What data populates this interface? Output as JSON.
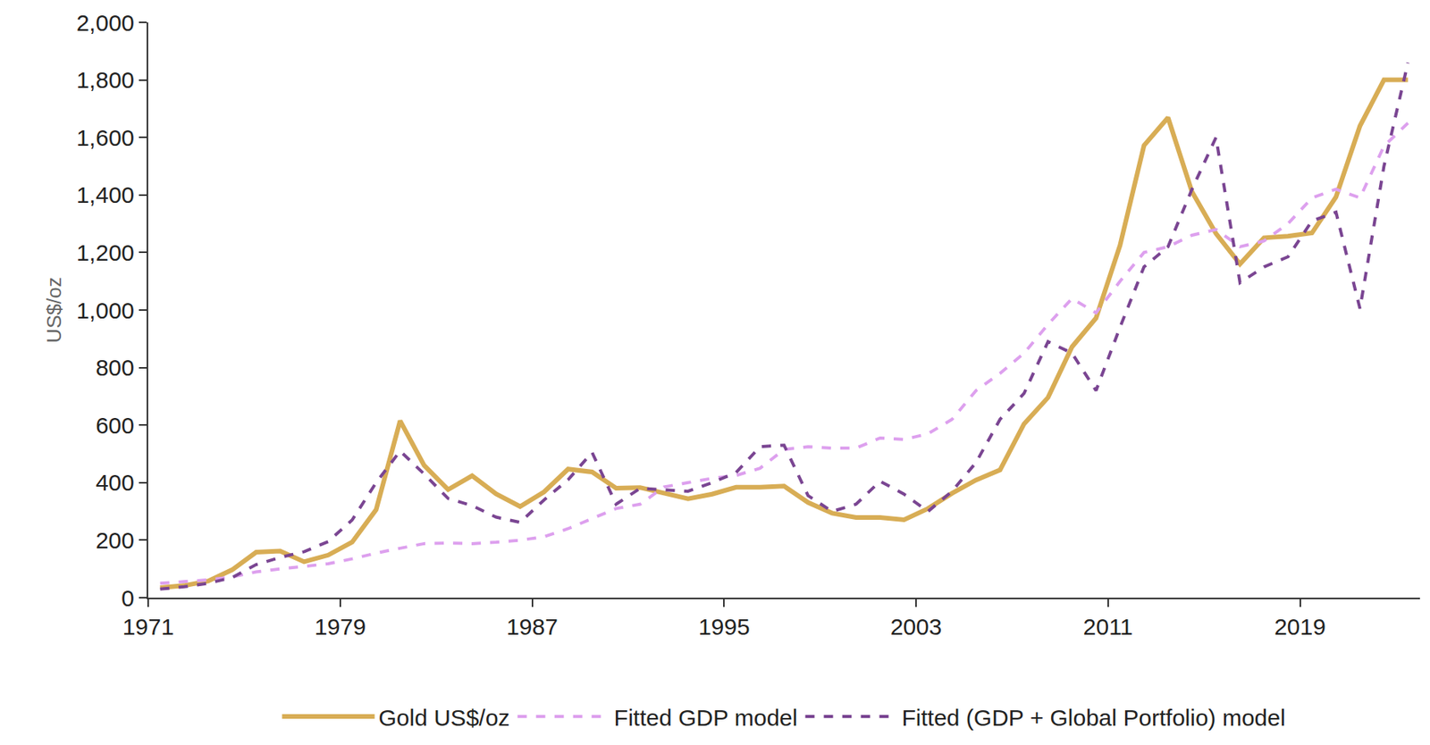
{
  "chart_data": {
    "type": "line",
    "y_label": "US$/oz",
    "x": [
      1971.5,
      1972.5,
      1973.5,
      1974.5,
      1975.5,
      1976.5,
      1977.5,
      1978.5,
      1979.5,
      1980.5,
      1981.5,
      1982.5,
      1983.5,
      1984.5,
      1985.5,
      1986.5,
      1987.5,
      1988.5,
      1989.5,
      1990.5,
      1991.5,
      1992.5,
      1993.5,
      1994.5,
      1995.5,
      1996.5,
      1997.5,
      1998.5,
      1999.5,
      2000.5,
      2001.5,
      2002.5,
      2003.5,
      2004.5,
      2005.5,
      2006.5,
      2007.5,
      2008.5,
      2009.5,
      2010.5,
      2011.5,
      2012.5,
      2013.5,
      2014.5,
      2015.5,
      2016.5,
      2017.5,
      2018.5,
      2019.5,
      2020.5,
      2021.5,
      2022.5,
      2023.5
    ],
    "series": [
      {
        "name": "Gold US$/oz",
        "color": "#D8AD55",
        "line_style": "solid",
        "values": [
          35,
          42,
          58,
          97,
          158,
          162,
          125,
          148,
          193,
          306,
          615,
          460,
          376,
          424,
          361,
          317,
          368,
          447,
          437,
          381,
          383,
          362,
          344,
          360,
          384,
          384,
          388,
          331,
          294,
          279,
          279,
          271,
          310,
          363,
          409,
          444,
          604,
          696,
          872,
          972,
          1225,
          1572,
          1669,
          1411,
          1266,
          1160,
          1251,
          1257,
          1268,
          1393,
          1640,
          1800,
          1800
        ]
      },
      {
        "name": "Fitted GDP model",
        "color": "#DDA0EE",
        "line_style": "dash",
        "values": [
          50,
          55,
          62,
          72,
          90,
          100,
          108,
          118,
          135,
          155,
          172,
          188,
          190,
          188,
          193,
          200,
          212,
          240,
          275,
          310,
          325,
          385,
          400,
          415,
          425,
          450,
          515,
          525,
          520,
          520,
          555,
          550,
          570,
          620,
          720,
          780,
          850,
          950,
          1040,
          990,
          1100,
          1200,
          1220,
          1260,
          1280,
          1220,
          1240,
          1300,
          1390,
          1420,
          1390,
          1570,
          1650
        ]
      },
      {
        "name": "Fitted (GDP + Global Portfolio) model",
        "color": "#7A4592",
        "line_style": "dash",
        "values": [
          30,
          38,
          50,
          70,
          115,
          140,
          160,
          195,
          270,
          400,
          510,
          430,
          345,
          320,
          280,
          262,
          340,
          410,
          505,
          325,
          380,
          375,
          370,
          400,
          435,
          525,
          530,
          355,
          300,
          325,
          405,
          360,
          300,
          370,
          470,
          620,
          710,
          890,
          850,
          720,
          940,
          1150,
          1220,
          1420,
          1600,
          1095,
          1150,
          1185,
          1310,
          1340,
          1005,
          1500,
          1860
        ]
      }
    ],
    "xlim": [
      1971,
      2024
    ],
    "xticks": [
      1971,
      1979,
      1987,
      1995,
      2003,
      2011,
      2019
    ],
    "ylim": [
      0,
      2000
    ],
    "yticks": [
      0,
      {
        "value": 200,
        "label": "200"
      },
      {
        "value": 400,
        "label": "400"
      },
      {
        "value": 600,
        "label": "600"
      },
      {
        "value": 800,
        "label": "800"
      },
      {
        "value": 1000,
        "label": "1,000"
      },
      {
        "value": 1200,
        "label": "1,200"
      },
      {
        "value": 1400,
        "label": "1,400"
      },
      {
        "value": 1600,
        "label": "1,600"
      },
      {
        "value": 1800,
        "label": "1,800"
      },
      {
        "value": 2000,
        "label": "2,000"
      }
    ],
    "grid": false,
    "legend": "bottom"
  }
}
